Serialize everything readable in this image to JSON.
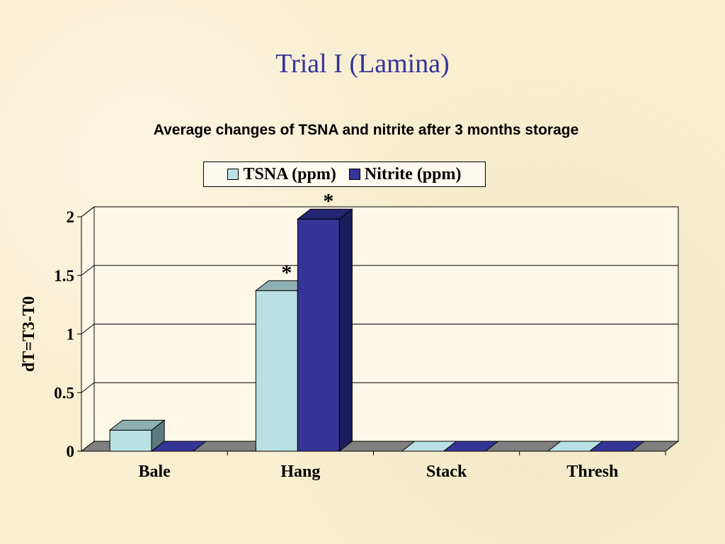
{
  "slide": {
    "title": "Trial I (Lamina)"
  },
  "colors": {
    "tsna": "#b9e0e3",
    "tsna_top": "#8fb0b2",
    "tsna_side": "#5c7a7c",
    "nitrite": "#353597",
    "nitrite_top": "#242475",
    "nitrite_side": "#1d1d5c",
    "floor": "#808080",
    "wall": "#fff8e8"
  },
  "chart_data": {
    "type": "bar",
    "title": "Average changes of TSNA and nitrite after 3 months storage",
    "ylabel": "dT=T3-T0",
    "xlabel": "",
    "categories": [
      "Bale",
      "Hang",
      "Stack",
      "Thresh"
    ],
    "series": [
      {
        "name": "TSNA (ppm)",
        "values": [
          0.18,
          1.37,
          0,
          0
        ]
      },
      {
        "name": "Nitrite (ppm)",
        "values": [
          0,
          1.98,
          0,
          0
        ]
      }
    ],
    "yticks": [
      "0",
      "0.5",
      "1",
      "1.5",
      "2"
    ],
    "ylim": [
      0,
      2
    ],
    "grid": true,
    "legend_position": "top",
    "annotations": [
      {
        "text": "*",
        "category": "Hang",
        "series": "TSNA (ppm)"
      },
      {
        "text": "*",
        "category": "Hang",
        "series": "Nitrite (ppm)"
      }
    ]
  }
}
